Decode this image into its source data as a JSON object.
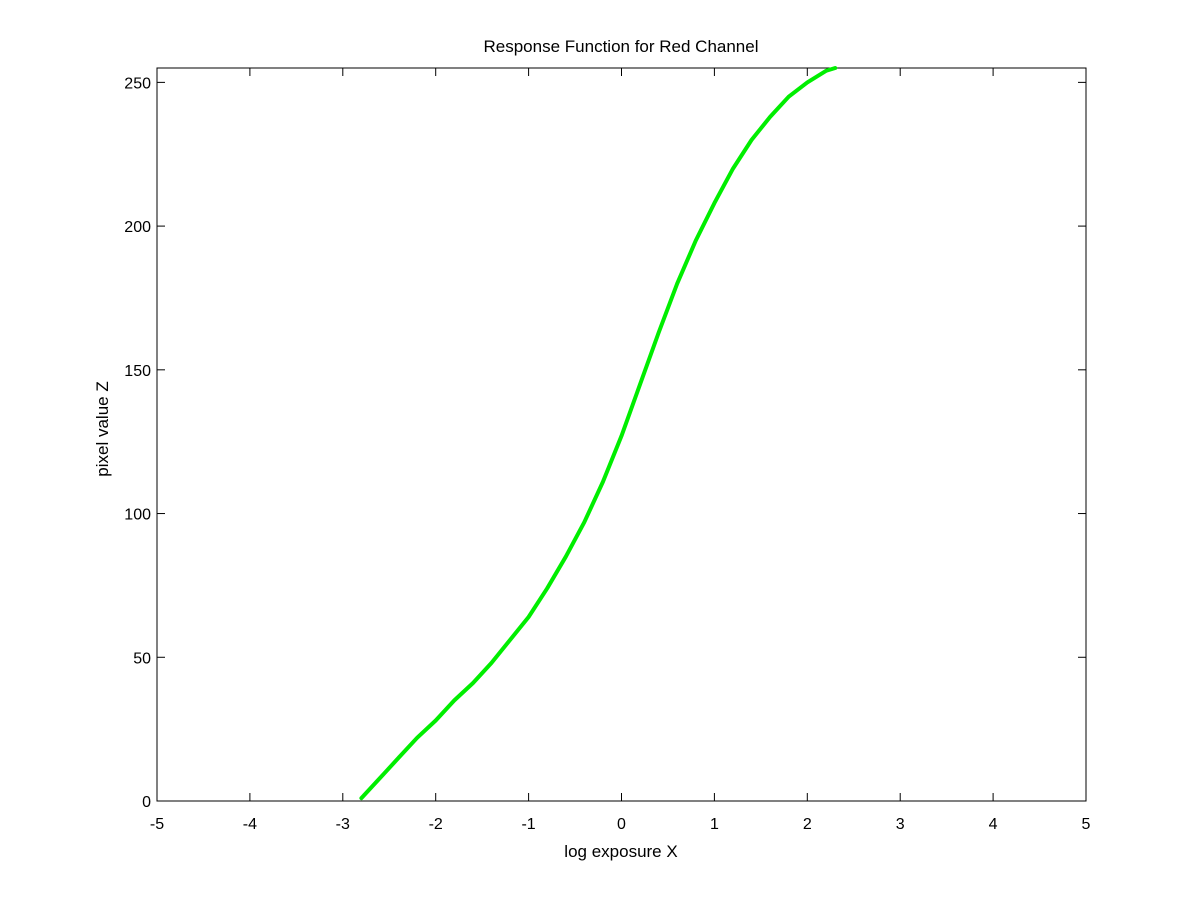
{
  "chart_data": {
    "type": "line",
    "title": "Response Function for Red Channel",
    "xlabel": "log exposure X",
    "ylabel": "pixel value Z",
    "xlim": [
      -5,
      5
    ],
    "ylim": [
      0,
      255
    ],
    "x_ticks": [
      "-5",
      "-4",
      "-3",
      "-2",
      "-1",
      "0",
      "1",
      "2",
      "3",
      "4",
      "5"
    ],
    "y_ticks": [
      "0",
      "50",
      "100",
      "150",
      "200",
      "250"
    ],
    "grid": false,
    "series": [
      {
        "color": "#00ee00",
        "points": [
          [
            -2.8,
            1
          ],
          [
            -2.6,
            8
          ],
          [
            -2.4,
            15
          ],
          [
            -2.2,
            22
          ],
          [
            -2.0,
            28
          ],
          [
            -1.8,
            35
          ],
          [
            -1.6,
            41
          ],
          [
            -1.4,
            48
          ],
          [
            -1.2,
            56
          ],
          [
            -1.0,
            64
          ],
          [
            -0.8,
            74
          ],
          [
            -0.6,
            85
          ],
          [
            -0.4,
            97
          ],
          [
            -0.2,
            111
          ],
          [
            0.0,
            127
          ],
          [
            0.2,
            145
          ],
          [
            0.4,
            163
          ],
          [
            0.6,
            180
          ],
          [
            0.8,
            195
          ],
          [
            1.0,
            208
          ],
          [
            1.2,
            220
          ],
          [
            1.4,
            230
          ],
          [
            1.6,
            238
          ],
          [
            1.8,
            245
          ],
          [
            2.0,
            250
          ],
          [
            2.2,
            254
          ],
          [
            2.3,
            255
          ]
        ]
      }
    ]
  }
}
